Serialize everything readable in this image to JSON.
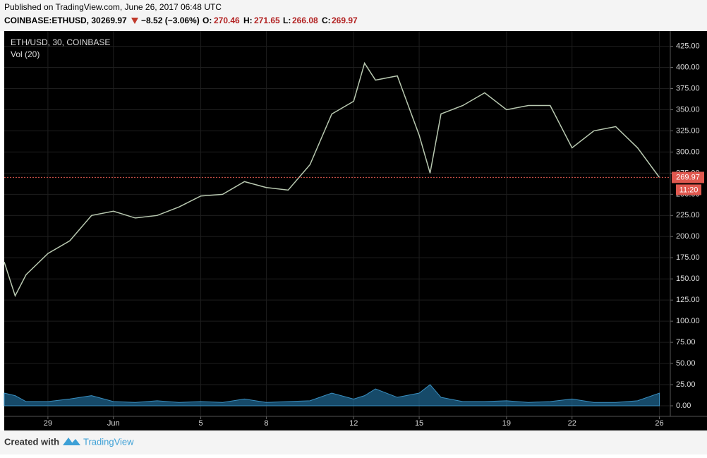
{
  "header": {
    "published": "Published on TradingView.com, June 26, 2017 06:48 UTC",
    "symbol": "COINBASE:ETHUSD, 30",
    "last": "269.97",
    "change": "−8.52 (−3.06%)",
    "o_label": "O:",
    "o": "270.46",
    "h_label": "H:",
    "h": "271.65",
    "l_label": "L:",
    "l": "266.08",
    "c_label": "C:",
    "c": "269.97"
  },
  "chart_data": {
    "type": "line",
    "legend": "ETH/USD, 30, COINBASE",
    "x": [
      "2017-05-27",
      "2017-05-27T12:00",
      "2017-05-28",
      "2017-05-29",
      "2017-05-30",
      "2017-05-31",
      "2017-06-01",
      "2017-06-02",
      "2017-06-03",
      "2017-06-04",
      "2017-06-05",
      "2017-06-06",
      "2017-06-07",
      "2017-06-08",
      "2017-06-09",
      "2017-06-10",
      "2017-06-11",
      "2017-06-12",
      "2017-06-12T12:00",
      "2017-06-13",
      "2017-06-14",
      "2017-06-15",
      "2017-06-15T12:00",
      "2017-06-16",
      "2017-06-17",
      "2017-06-18",
      "2017-06-19",
      "2017-06-20",
      "2017-06-21",
      "2017-06-22",
      "2017-06-23",
      "2017-06-24",
      "2017-06-25",
      "2017-06-26"
    ],
    "series": [
      {
        "name": "ETH/USD",
        "color": "#b8c8b0",
        "values": [
          170,
          130,
          155,
          180,
          195,
          225,
          230,
          222,
          225,
          235,
          248,
          250,
          265,
          258,
          255,
          285,
          345,
          360,
          405,
          385,
          390,
          320,
          275,
          345,
          355,
          370,
          350,
          355,
          355,
          305,
          325,
          330,
          305,
          270
        ]
      },
      {
        "name": "Vol (20)",
        "color": "#1f6a96",
        "values": [
          15,
          12,
          5,
          5,
          8,
          12,
          5,
          4,
          6,
          4,
          5,
          4,
          8,
          4,
          5,
          6,
          15,
          8,
          12,
          20,
          10,
          15,
          25,
          10,
          5,
          5,
          6,
          4,
          5,
          8,
          4,
          4,
          6,
          15
        ]
      }
    ],
    "last_price": 269.97,
    "countdown": "11:20",
    "xlim": [
      "2017-05-27",
      "2017-06-26T12:00"
    ],
    "xticks": [
      {
        "value": "2017-05-29",
        "label": "29"
      },
      {
        "value": "2017-06-01",
        "label": "Jun"
      },
      {
        "value": "2017-06-05",
        "label": "5"
      },
      {
        "value": "2017-06-08",
        "label": "8"
      },
      {
        "value": "2017-06-12",
        "label": "12"
      },
      {
        "value": "2017-06-15",
        "label": "15"
      },
      {
        "value": "2017-06-19",
        "label": "19"
      },
      {
        "value": "2017-06-22",
        "label": "22"
      },
      {
        "value": "2017-06-26",
        "label": "26"
      }
    ],
    "ylim": [
      -12.5,
      443
    ],
    "yticks": [
      {
        "value": 0,
        "label": "0.00"
      },
      {
        "value": 25,
        "label": "25.00"
      },
      {
        "value": 50,
        "label": "50.00"
      },
      {
        "value": 75,
        "label": "75.00"
      },
      {
        "value": 100,
        "label": "100.00"
      },
      {
        "value": 125,
        "label": "125.00"
      },
      {
        "value": 150,
        "label": "150.00"
      },
      {
        "value": 175,
        "label": "175.00"
      },
      {
        "value": 200,
        "label": "200.00"
      },
      {
        "value": 225,
        "label": "225.00"
      },
      {
        "value": 250,
        "label": "250.00"
      },
      {
        "value": 275,
        "label": "275.00"
      },
      {
        "value": 300,
        "label": "300.00"
      },
      {
        "value": 325,
        "label": "325.00"
      },
      {
        "value": 350,
        "label": "350.00"
      },
      {
        "value": 375,
        "label": "375.00"
      },
      {
        "value": 400,
        "label": "400.00"
      },
      {
        "value": 425,
        "label": "425.00"
      }
    ],
    "grid": true
  },
  "footer": {
    "created": "Created with",
    "brand": "TradingView"
  }
}
